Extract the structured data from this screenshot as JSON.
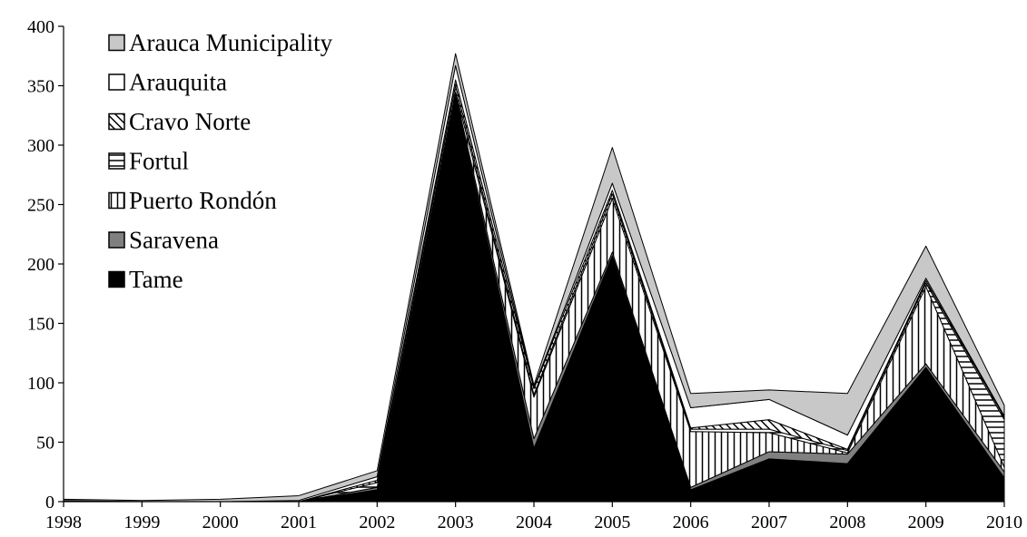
{
  "chart_data": {
    "type": "area",
    "stacked": true,
    "title": "",
    "xlabel": "",
    "ylabel": "",
    "x": [
      "1998",
      "1999",
      "2000",
      "2001",
      "2002",
      "2003",
      "2004",
      "2005",
      "2006",
      "2007",
      "2008",
      "2009",
      "2010"
    ],
    "ylim": [
      0,
      400
    ],
    "yticks": [
      "0",
      "50",
      "100",
      "150",
      "200",
      "250",
      "300",
      "350",
      "400"
    ],
    "grid": false,
    "legend_position": "top-left",
    "series": [
      {
        "name": "Tame",
        "pattern": "solid",
        "color": "#000000",
        "values": [
          1,
          0,
          0,
          0,
          10,
          340,
          45,
          207,
          10,
          36,
          32,
          113,
          20
        ]
      },
      {
        "name": "Saravena",
        "pattern": "solid",
        "color": "#808080",
        "values": [
          0,
          0,
          0,
          0,
          2,
          3,
          8,
          3,
          2,
          6,
          8,
          3,
          5
        ]
      },
      {
        "name": "Puerto Rondón",
        "pattern": "vertical-stripes",
        "color": "#000000",
        "values": [
          0,
          0,
          0,
          0,
          0,
          2,
          35,
          45,
          47,
          16,
          1,
          65,
          4
        ]
      },
      {
        "name": "Fortul",
        "pattern": "horizontal-stripes",
        "color": "#000000",
        "values": [
          0,
          0,
          0,
          0,
          4,
          5,
          2,
          4,
          2,
          3,
          2,
          3,
          40
        ]
      },
      {
        "name": "Cravo Norte",
        "pattern": "diagonal-stripes",
        "color": "#000000",
        "values": [
          0,
          0,
          0,
          0,
          2,
          5,
          5,
          3,
          1,
          8,
          1,
          2,
          2
        ]
      },
      {
        "name": "Arauquita",
        "pattern": "solid",
        "color": "#ffffff",
        "values": [
          0,
          0,
          0,
          1,
          3,
          12,
          1,
          6,
          17,
          17,
          12,
          2,
          1
        ]
      },
      {
        "name": "Arauca Municipality",
        "pattern": "solid",
        "color": "#c8c8c8",
        "values": [
          1,
          1,
          2,
          4,
          5,
          10,
          2,
          30,
          12,
          8,
          35,
          27,
          9
        ]
      }
    ],
    "legend": [
      "Arauca Municipality",
      "Arauquita",
      "Cravo Norte",
      "Fortul",
      "Puerto Rondón",
      "Saravena",
      "Tame"
    ]
  }
}
